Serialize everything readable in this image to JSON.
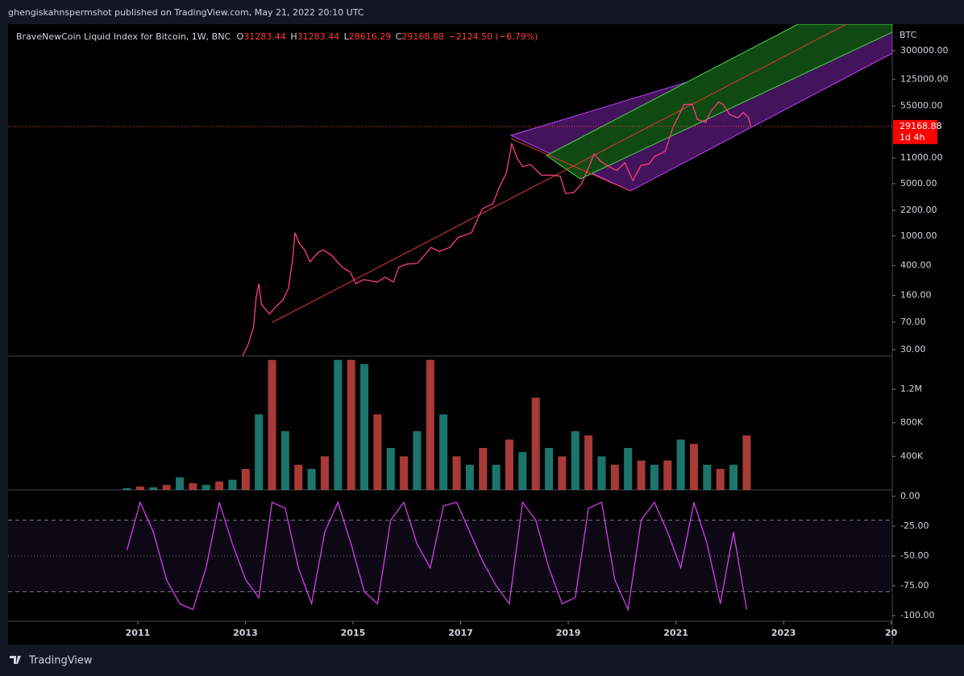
{
  "header": {
    "publisher": "ghengiskahnspermshot published on TradingView.com, May 21, 2022 20:10 UTC",
    "symbol": "BraveNewCoin Liquid Index for Bitcoin, 1W, BNC",
    "open_label": "O",
    "open": "31283.44",
    "high_label": "H",
    "high": "31283.44",
    "low_label": "L",
    "low": "28616.29",
    "close_label": "C",
    "close": "29168.88",
    "change": "−2124.50 (−6.79%)",
    "currency": "BTC",
    "countdown": "1d 4h"
  },
  "footer": {
    "brand": "TradingView"
  },
  "chart_data": [
    {
      "type": "line",
      "log_scale": true,
      "color": "#ff3d7f",
      "xlim": [
        2008.59,
        2025.02
      ],
      "ylim": [
        24.6,
        681000
      ],
      "yticks": [
        {
          "value": 300000,
          "label": "300000.00"
        },
        {
          "value": 125000,
          "label": "125000.00"
        },
        {
          "value": 55000,
          "label": "55000.00"
        },
        {
          "value": 11000,
          "label": "11000.00"
        },
        {
          "value": 5000,
          "label": "5000.00"
        },
        {
          "value": 2200,
          "label": "2200.00"
        },
        {
          "value": 1000,
          "label": "1000.00"
        },
        {
          "value": 400,
          "label": "400.00"
        },
        {
          "value": 160,
          "label": "160.00"
        },
        {
          "value": 70,
          "label": "70.00"
        },
        {
          "value": 30,
          "label": "30.00"
        }
      ],
      "x": [
        2012.95,
        2013.05,
        2013.15,
        2013.2,
        2013.25,
        2013.3,
        2013.45,
        2013.55,
        2013.7,
        2013.8,
        2013.88,
        2013.92,
        2014.0,
        2014.1,
        2014.2,
        2014.35,
        2014.45,
        2014.6,
        2014.8,
        2014.95,
        2015.05,
        2015.2,
        2015.45,
        2015.6,
        2015.75,
        2015.85,
        2016.0,
        2016.2,
        2016.45,
        2016.6,
        2016.8,
        2016.95,
        2017.2,
        2017.4,
        2017.6,
        2017.7,
        2017.85,
        2017.95,
        2018.05,
        2018.15,
        2018.3,
        2018.5,
        2018.7,
        2018.85,
        2018.95,
        2019.1,
        2019.25,
        2019.4,
        2019.48,
        2019.6,
        2019.75,
        2019.9,
        2020.05,
        2020.2,
        2020.35,
        2020.5,
        2020.6,
        2020.8,
        2020.95,
        2021.05,
        2021.15,
        2021.3,
        2021.4,
        2021.55,
        2021.65,
        2021.8,
        2021.88,
        2022.0,
        2022.15,
        2022.25,
        2022.35,
        2022.39
      ],
      "values": [
        25,
        35,
        60,
        150,
        230,
        120,
        90,
        110,
        140,
        200,
        500,
        1100,
        800,
        650,
        450,
        600,
        650,
        550,
        380,
        330,
        230,
        260,
        240,
        280,
        240,
        380,
        420,
        430,
        700,
        620,
        700,
        950,
        1100,
        2300,
        2700,
        4200,
        7000,
        17000,
        11000,
        8500,
        9000,
        6500,
        6500,
        6300,
        3700,
        3800,
        5000,
        9000,
        12500,
        10000,
        8500,
        7500,
        9500,
        5500,
        8800,
        9200,
        11500,
        13500,
        29000,
        40000,
        57000,
        58000,
        36000,
        33000,
        47000,
        62000,
        57000,
        42000,
        38000,
        45000,
        38000,
        29168.88
      ]
    },
    {
      "type": "bar",
      "xlim": [
        2008.59,
        2025.02
      ],
      "ylim": [
        0,
        1595000
      ],
      "yticks": [
        {
          "value": 400000,
          "label": "400K"
        },
        {
          "value": 800000,
          "label": "800K"
        },
        {
          "value": 1200000,
          "label": "1.2M"
        }
      ],
      "x": [
        2010.8,
        2011.045,
        2011.29,
        2011.535,
        2011.78,
        2012.025,
        2012.27,
        2012.515,
        2012.76,
        2013.005,
        2013.25,
        2013.495,
        2013.74,
        2013.985,
        2014.23,
        2014.475,
        2014.72,
        2014.965,
        2015.21,
        2015.455,
        2015.7,
        2015.945,
        2016.19,
        2016.435,
        2016.68,
        2016.925,
        2017.17,
        2017.415,
        2017.66,
        2017.905,
        2018.15,
        2018.395,
        2018.64,
        2018.885,
        2019.13,
        2019.375,
        2019.62,
        2019.865,
        2020.11,
        2020.355,
        2020.6,
        2020.845,
        2021.09,
        2021.335,
        2021.58,
        2021.825,
        2022.07,
        2022.315
      ],
      "values": [
        20000,
        40000,
        30000,
        60000,
        150000,
        80000,
        60000,
        100000,
        120000,
        250000,
        900000,
        1550000,
        700000,
        300000,
        250000,
        400000,
        1550000,
        1550000,
        1500000,
        900000,
        500000,
        400000,
        700000,
        1550000,
        900000,
        400000,
        300000,
        500000,
        300000,
        600000,
        450000,
        1100000,
        500000,
        400000,
        700000,
        650000,
        400000,
        300000,
        500000,
        350000,
        300000,
        350000,
        600000,
        550000,
        300000,
        250000,
        300000,
        650000
      ],
      "colors": [
        "#26a69a",
        "#ef5350",
        "#26a69a",
        "#ef5350",
        "#26a69a",
        "#ef5350",
        "#26a69a",
        "#ef5350",
        "#26a69a",
        "#ef5350",
        "#26a69a",
        "#ef5350",
        "#26a69a",
        "#ef5350",
        "#26a69a",
        "#ef5350",
        "#26a69a",
        "#ef5350",
        "#26a69a",
        "#ef5350",
        "#26a69a",
        "#ef5350",
        "#26a69a",
        "#ef5350",
        "#26a69a",
        "#ef5350",
        "#26a69a",
        "#ef5350",
        "#26a69a",
        "#ef5350",
        "#26a69a",
        "#ef5350",
        "#26a69a",
        "#ef5350",
        "#26a69a",
        "#ef5350",
        "#26a69a",
        "#ef5350",
        "#26a69a",
        "#ef5350",
        "#26a69a",
        "#ef5350",
        "#26a69a",
        "#ef5350",
        "#26a69a",
        "#ef5350",
        "#26a69a",
        "#ef5350"
      ]
    },
    {
      "type": "line",
      "color": "#d63cf0",
      "xlim": [
        2008.59,
        2025.02
      ],
      "ylim": [
        -104.7,
        5.4
      ],
      "yticks": [
        {
          "value": 0,
          "label": "0.00"
        },
        {
          "value": -25,
          "label": "-25.00"
        },
        {
          "value": -50,
          "label": "-50.00"
        },
        {
          "value": -75,
          "label": "-75.00"
        },
        {
          "value": -100,
          "label": "-100.00"
        }
      ],
      "levels": [
        -20,
        -50,
        -80
      ],
      "xticks": [
        2011,
        2013,
        2015,
        2017,
        2019,
        2021,
        2023,
        {
          "value": 2025,
          "label": "20"
        }
      ],
      "x": [
        2010.8,
        2011.045,
        2011.29,
        2011.535,
        2011.78,
        2012.025,
        2012.27,
        2012.515,
        2012.76,
        2013.005,
        2013.25,
        2013.495,
        2013.74,
        2013.985,
        2014.23,
        2014.475,
        2014.72,
        2014.965,
        2015.21,
        2015.455,
        2015.7,
        2015.945,
        2016.19,
        2016.435,
        2016.68,
        2016.925,
        2017.17,
        2017.415,
        2017.66,
        2017.905,
        2018.15,
        2018.395,
        2018.64,
        2018.885,
        2019.13,
        2019.375,
        2019.62,
        2019.865,
        2020.11,
        2020.355,
        2020.6,
        2020.845,
        2021.09,
        2021.335,
        2021.58,
        2021.825,
        2022.07,
        2022.315
      ],
      "values": [
        -45,
        -5,
        -30,
        -70,
        -90,
        -95,
        -60,
        -5,
        -40,
        -70,
        -85,
        -5,
        -10,
        -60,
        -90,
        -30,
        -5,
        -40,
        -80,
        -90,
        -20,
        -5,
        -40,
        -60,
        -8,
        -5,
        -30,
        -55,
        -75,
        -90,
        -5,
        -20,
        -60,
        -90,
        -85,
        -10,
        -5,
        -70,
        -95,
        -20,
        -5,
        -30,
        -60,
        -5,
        -40,
        -90,
        -30,
        -95
      ]
    }
  ]
}
